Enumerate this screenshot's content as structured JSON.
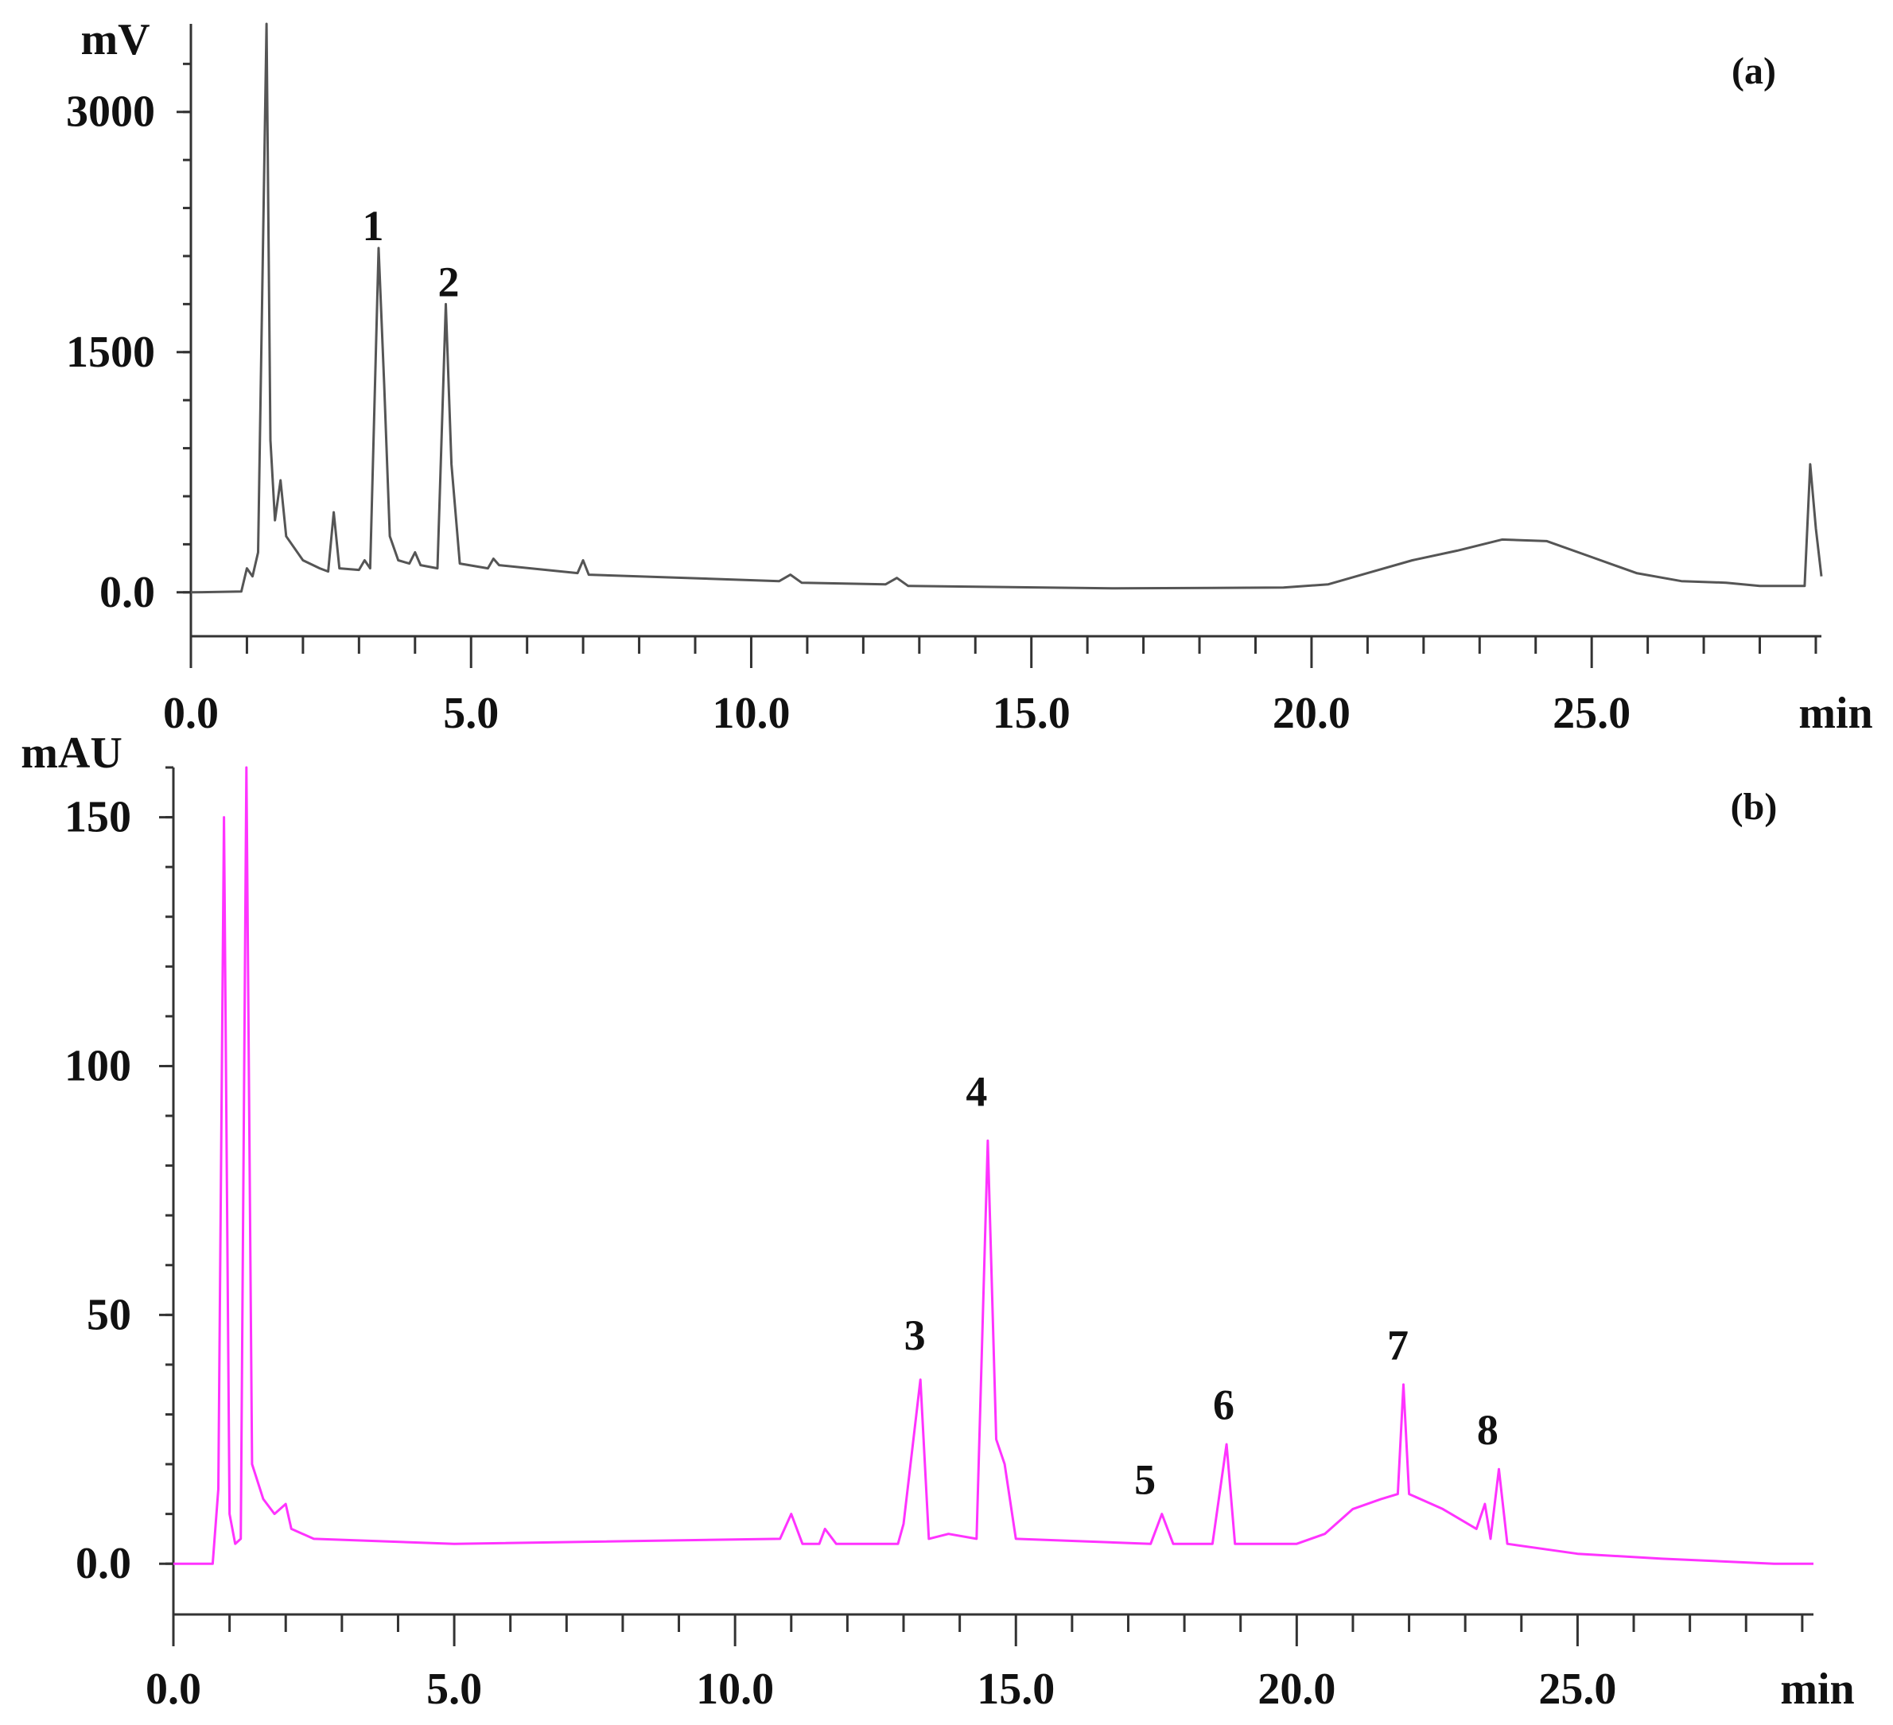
{
  "chart_data": [
    {
      "type": "line",
      "panel_tag": "(a)",
      "ylabel": "mV",
      "xlabel": "min",
      "xlim": [
        0,
        29.1
      ],
      "ylim": [
        -150,
        3550
      ],
      "y_ticks": [
        "3000",
        "1500",
        "0.0"
      ],
      "y_tick_values": [
        3000,
        1500,
        0
      ],
      "x_ticks": [
        "0.0",
        "5.0",
        "10.0",
        "15.0",
        "20.0",
        "25.0"
      ],
      "x_tick_values": [
        0,
        5,
        10,
        15,
        20,
        25
      ],
      "line_color": "#555555",
      "series": [
        {
          "points": [
            [
              0.0,
              0
            ],
            [
              0.9,
              5
            ],
            [
              1.0,
              150
            ],
            [
              1.1,
              100
            ],
            [
              1.2,
              250
            ],
            [
              1.35,
              3550
            ],
            [
              1.42,
              950
            ],
            [
              1.5,
              450
            ],
            [
              1.6,
              700
            ],
            [
              1.7,
              350
            ],
            [
              2.0,
              200
            ],
            [
              2.3,
              150
            ],
            [
              2.45,
              130
            ],
            [
              2.55,
              500
            ],
            [
              2.65,
              150
            ],
            [
              3.0,
              140
            ],
            [
              3.1,
              200
            ],
            [
              3.2,
              150
            ],
            [
              3.35,
              2150
            ],
            [
              3.45,
              1300
            ],
            [
              3.55,
              350
            ],
            [
              3.7,
              200
            ],
            [
              3.9,
              180
            ],
            [
              4.0,
              250
            ],
            [
              4.1,
              170
            ],
            [
              4.4,
              150
            ],
            [
              4.55,
              1800
            ],
            [
              4.65,
              800
            ],
            [
              4.8,
              180
            ],
            [
              5.3,
              150
            ],
            [
              5.4,
              210
            ],
            [
              5.5,
              170
            ],
            [
              6.9,
              120
            ],
            [
              7.0,
              200
            ],
            [
              7.1,
              110
            ],
            [
              10.5,
              70
            ],
            [
              10.7,
              110
            ],
            [
              10.9,
              60
            ],
            [
              12.4,
              50
            ],
            [
              12.6,
              90
            ],
            [
              12.8,
              40
            ],
            [
              16.5,
              25
            ],
            [
              19.5,
              30
            ],
            [
              20.3,
              50
            ],
            [
              21.0,
              120
            ],
            [
              21.8,
              200
            ],
            [
              22.6,
              260
            ],
            [
              23.4,
              330
            ],
            [
              24.2,
              320
            ],
            [
              25.0,
              220
            ],
            [
              25.8,
              120
            ],
            [
              26.6,
              70
            ],
            [
              27.4,
              60
            ],
            [
              28.0,
              40
            ],
            [
              28.8,
              40
            ],
            [
              28.9,
              800
            ],
            [
              29.0,
              400
            ],
            [
              29.1,
              100
            ]
          ]
        }
      ],
      "peak_labels": [
        {
          "text": "1",
          "x": 3.25,
          "y": 2200
        },
        {
          "text": "2",
          "x": 4.6,
          "y": 1850
        }
      ]
    },
    {
      "type": "line",
      "panel_tag": "(b)",
      "ylabel": "mAU",
      "xlabel": "min",
      "xlim": [
        0,
        29.2
      ],
      "ylim": [
        -7,
        160
      ],
      "y_ticks": [
        "150",
        "100",
        "50",
        "0.0"
      ],
      "y_tick_values": [
        150,
        100,
        50,
        0
      ],
      "x_ticks": [
        "0.0",
        "5.0",
        "10.0",
        "15.0",
        "20.0",
        "25.0"
      ],
      "x_tick_values": [
        0,
        5,
        10,
        15,
        20,
        25
      ],
      "line_color": "#ff33ff",
      "series": [
        {
          "points": [
            [
              0.0,
              0
            ],
            [
              0.7,
              0
            ],
            [
              0.8,
              15
            ],
            [
              0.9,
              150
            ],
            [
              1.0,
              10
            ],
            [
              1.1,
              4
            ],
            [
              1.2,
              5
            ],
            [
              1.3,
              160
            ],
            [
              1.4,
              20
            ],
            [
              1.6,
              13
            ],
            [
              1.8,
              10
            ],
            [
              2.0,
              12
            ],
            [
              2.1,
              7
            ],
            [
              2.5,
              5
            ],
            [
              5.0,
              4
            ],
            [
              10.8,
              5
            ],
            [
              11.0,
              10
            ],
            [
              11.2,
              4
            ],
            [
              11.5,
              4
            ],
            [
              11.6,
              7
            ],
            [
              11.8,
              4
            ],
            [
              12.9,
              4
            ],
            [
              13.0,
              8
            ],
            [
              13.3,
              37
            ],
            [
              13.45,
              5
            ],
            [
              13.8,
              6
            ],
            [
              14.3,
              5
            ],
            [
              14.5,
              85
            ],
            [
              14.65,
              25
            ],
            [
              14.8,
              20
            ],
            [
              15.0,
              5
            ],
            [
              17.4,
              4
            ],
            [
              17.6,
              10
            ],
            [
              17.8,
              4
            ],
            [
              18.5,
              4
            ],
            [
              18.75,
              24
            ],
            [
              18.9,
              4
            ],
            [
              20.0,
              4
            ],
            [
              20.5,
              6
            ],
            [
              21.0,
              11
            ],
            [
              21.5,
              13
            ],
            [
              21.8,
              14
            ],
            [
              21.9,
              36
            ],
            [
              22.0,
              14
            ],
            [
              22.6,
              11
            ],
            [
              23.2,
              7
            ],
            [
              23.35,
              12
            ],
            [
              23.45,
              5
            ],
            [
              23.6,
              19
            ],
            [
              23.75,
              4
            ],
            [
              25.0,
              2
            ],
            [
              26.5,
              1
            ],
            [
              28.5,
              0
            ],
            [
              29.2,
              0
            ]
          ]
        }
      ],
      "peak_labels": [
        {
          "text": "3",
          "x": 13.2,
          "y": 43
        },
        {
          "text": "4",
          "x": 14.3,
          "y": 92
        },
        {
          "text": "5",
          "x": 17.3,
          "y": 14
        },
        {
          "text": "6",
          "x": 18.7,
          "y": 29
        },
        {
          "text": "7",
          "x": 21.8,
          "y": 41
        },
        {
          "text": "8",
          "x": 23.4,
          "y": 24
        }
      ]
    }
  ]
}
